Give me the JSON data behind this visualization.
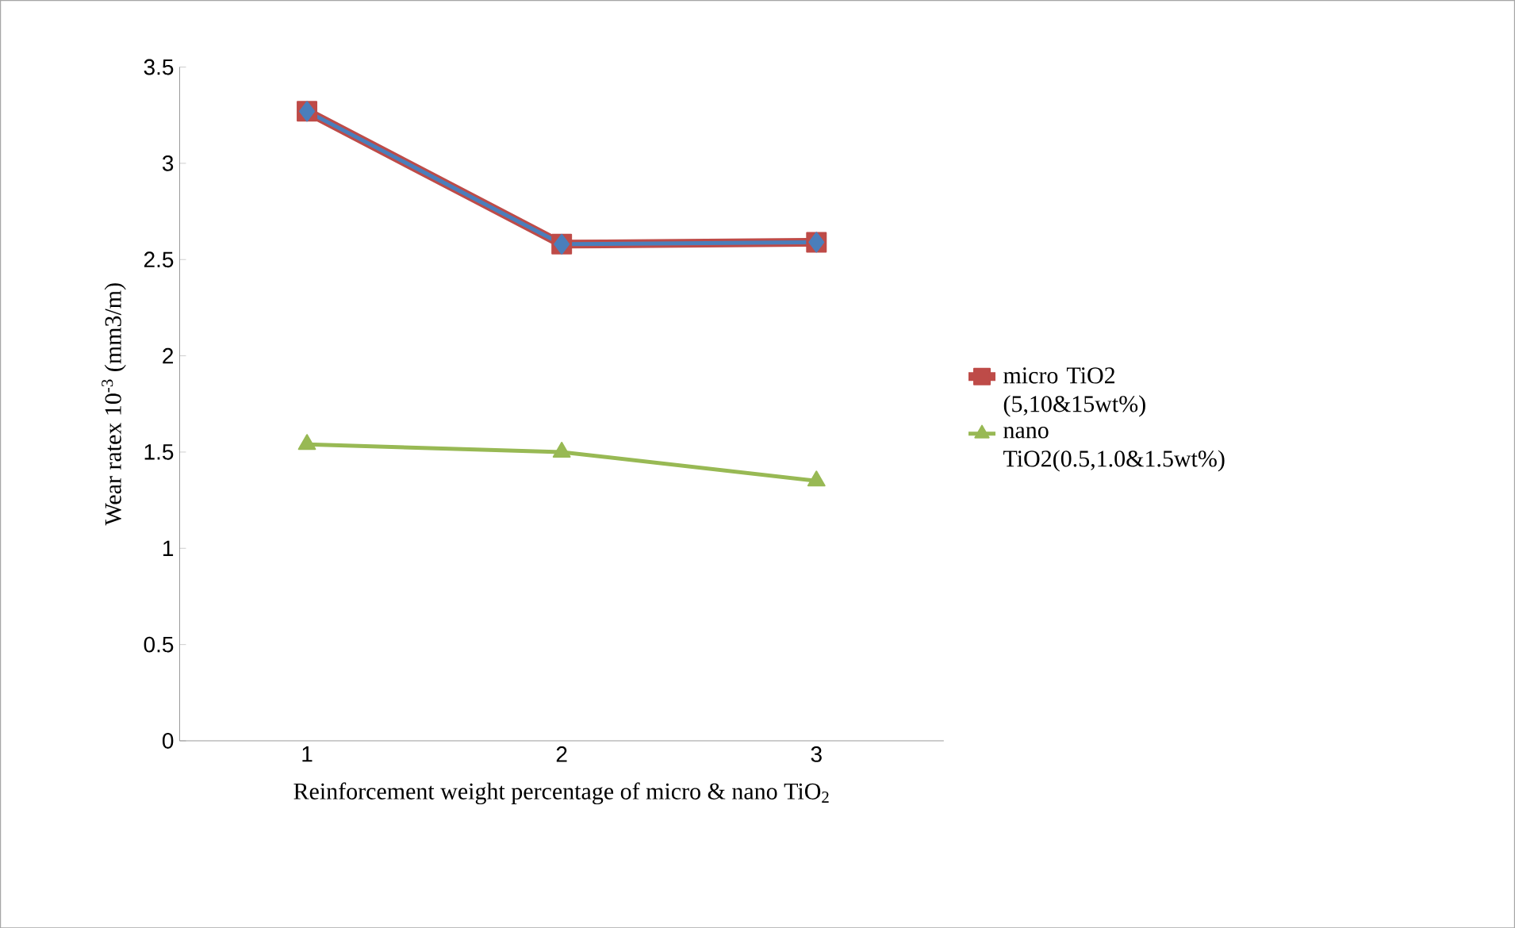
{
  "chart_data": {
    "type": "line",
    "xlabel": "Reinforcement weight percentage of micro & nano TiO$_{2}$",
    "ylabel": "Wear ratex 10$^{-3}$ (mm3/m)",
    "categories": [
      "1",
      "2",
      "3"
    ],
    "series": [
      {
        "name": "micro TiO2 (5,10&15wt%)",
        "color": "#be4b48",
        "marker": "square",
        "values": [
          3.27,
          2.58,
          2.59
        ]
      },
      {
        "color": "#4a7ebb",
        "marker": "diamond",
        "values": [
          3.27,
          2.58,
          2.59
        ]
      },
      {
        "name": "nano TiO2(0.5,1.0&1.5wt%)",
        "color": "#98b954",
        "marker": "triangle",
        "values": [
          1.54,
          1.5,
          1.35
        ]
      }
    ],
    "ylim": [
      0,
      3.5
    ],
    "yticks": [
      0,
      0.5,
      1,
      1.5,
      2,
      2.5,
      3,
      3.5
    ],
    "grid": false,
    "legend": "right",
    "line_style": "solid"
  }
}
